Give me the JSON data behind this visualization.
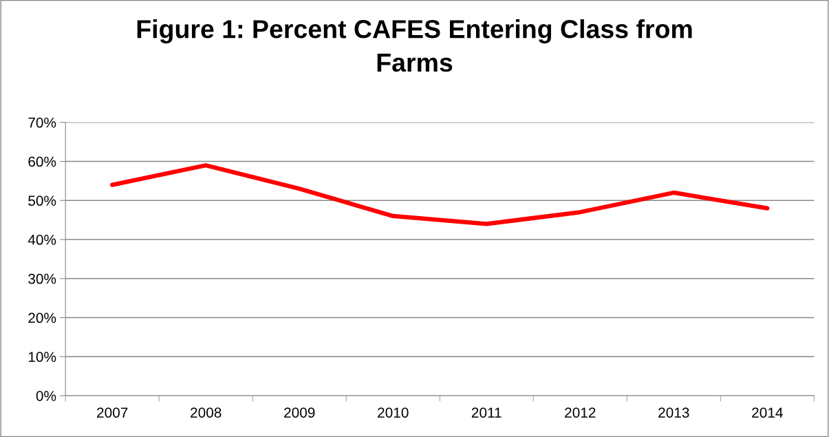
{
  "chart_data": {
    "type": "line",
    "title": "Figure 1: Percent CAFES Entering Class from\nFarms",
    "categories": [
      "2007",
      "2008",
      "2009",
      "2010",
      "2011",
      "2012",
      "2013",
      "2014"
    ],
    "series": [
      {
        "color": "#ff0000",
        "values": [
          54,
          59,
          53,
          46,
          44,
          47,
          52,
          48
        ]
      }
    ],
    "ylim": [
      0,
      70
    ],
    "yticks": [
      {
        "value": 0,
        "label": "0%"
      },
      {
        "value": 10,
        "label": "10%"
      },
      {
        "value": 20,
        "label": "20%"
      },
      {
        "value": 30,
        "label": "30%"
      },
      {
        "value": 40,
        "label": "40%"
      },
      {
        "value": 50,
        "label": "50%"
      },
      {
        "value": 60,
        "label": "60%"
      },
      {
        "value": 70,
        "label": "70%"
      }
    ],
    "grid": "y",
    "marker": "none",
    "line_style": "solid"
  }
}
